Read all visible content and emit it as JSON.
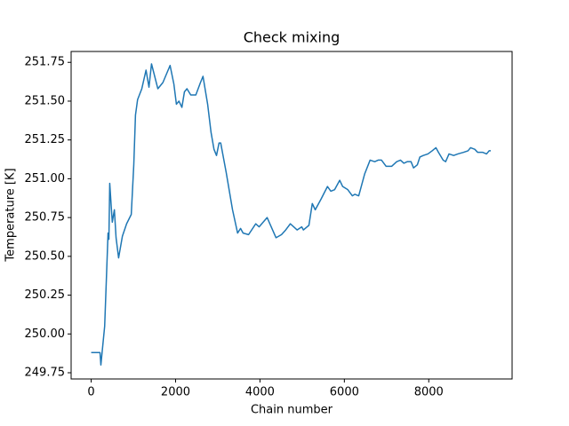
{
  "chart_data": {
    "type": "line",
    "title": "Check mixing",
    "x_label": "Chain number",
    "y_label": "Temperature [K]",
    "x": [
      0,
      210,
      230,
      320,
      360,
      400,
      420,
      440,
      500,
      550,
      590,
      650,
      740,
      840,
      950,
      1010,
      1050,
      1100,
      1200,
      1300,
      1370,
      1430,
      1580,
      1700,
      1870,
      1960,
      2020,
      2080,
      2150,
      2210,
      2270,
      2360,
      2480,
      2590,
      2650,
      2760,
      2840,
      2910,
      2970,
      3030,
      3070,
      3200,
      3350,
      3470,
      3540,
      3600,
      3730,
      3900,
      3980,
      4170,
      4380,
      4510,
      4610,
      4720,
      4880,
      4990,
      5030,
      5160,
      5240,
      5310,
      5450,
      5600,
      5680,
      5770,
      5890,
      5960,
      6080,
      6190,
      6250,
      6340,
      6480,
      6610,
      6720,
      6800,
      6880,
      6990,
      7120,
      7240,
      7330,
      7410,
      7490,
      7580,
      7640,
      7730,
      7790,
      7870,
      7980,
      8080,
      8170,
      8230,
      8340,
      8400,
      8480,
      8590,
      8690,
      8820,
      8930,
      8990,
      9090,
      9160,
      9280,
      9370,
      9430,
      9470
    ],
    "series": [
      {
        "name": "Temperature",
        "color": "#1f77b4",
        "values": [
          249.88,
          249.88,
          249.8,
          250.05,
          250.35,
          250.65,
          250.61,
          250.97,
          250.72,
          250.8,
          250.62,
          250.49,
          250.63,
          250.71,
          250.77,
          251.09,
          251.41,
          251.51,
          251.58,
          251.7,
          251.59,
          251.74,
          251.58,
          251.62,
          251.73,
          251.61,
          251.48,
          251.5,
          251.46,
          251.56,
          251.58,
          251.54,
          251.54,
          251.62,
          251.66,
          251.48,
          251.3,
          251.19,
          251.15,
          251.23,
          251.23,
          251.04,
          250.8,
          250.65,
          250.68,
          250.65,
          250.64,
          250.71,
          250.69,
          250.75,
          250.62,
          250.64,
          250.67,
          250.71,
          250.67,
          250.69,
          250.67,
          250.7,
          250.84,
          250.8,
          250.87,
          250.95,
          250.92,
          250.93,
          250.99,
          250.95,
          250.93,
          250.89,
          250.9,
          250.89,
          251.03,
          251.12,
          251.11,
          251.12,
          251.12,
          251.08,
          251.08,
          251.11,
          251.12,
          251.1,
          251.11,
          251.11,
          251.07,
          251.09,
          251.14,
          251.15,
          251.16,
          251.18,
          251.2,
          251.17,
          251.12,
          251.11,
          251.16,
          251.15,
          251.16,
          251.17,
          251.18,
          251.2,
          251.19,
          251.17,
          251.17,
          251.16,
          251.18,
          251.18
        ]
      }
    ],
    "xlim": [
      -475,
      9975
    ],
    "xticks": [
      0,
      2000,
      4000,
      6000,
      8000
    ],
    "ylim": [
      249.71,
      251.82
    ],
    "yticks": [
      249.75,
      {
        "value": 250,
        "label": "250.00"
      },
      250.25,
      {
        "value": 250.5,
        "label": "250.50"
      },
      250.75,
      {
        "value": 251,
        "label": "251.00"
      },
      251.25,
      {
        "value": 251.5,
        "label": "251.50"
      },
      251.75
    ],
    "grid": false
  }
}
